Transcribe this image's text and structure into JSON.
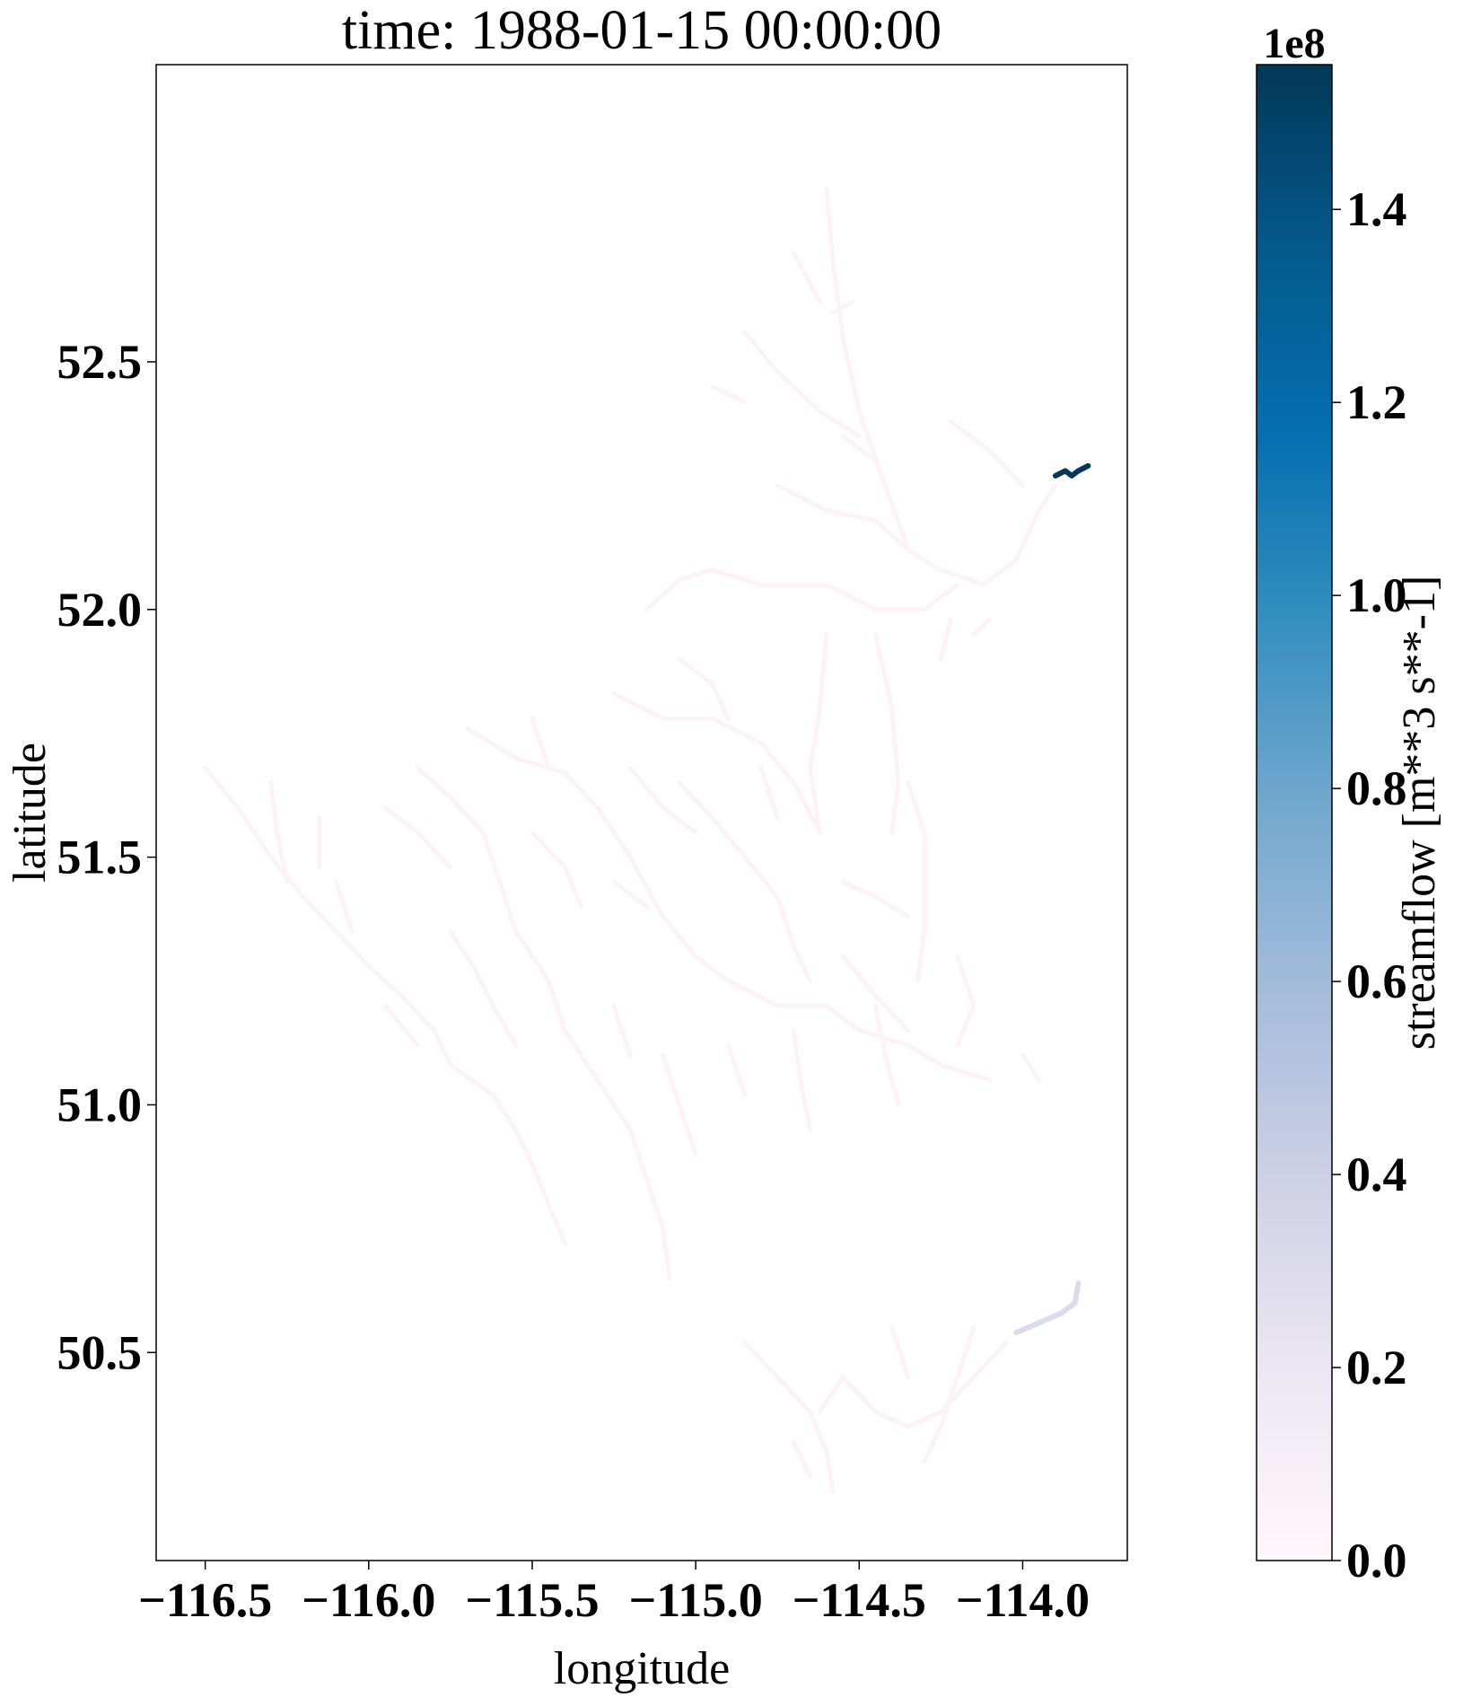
{
  "chart_data": {
    "type": "map",
    "title": "time: 1988-01-15 00:00:00",
    "xlabel": "longitude",
    "ylabel": "latitude",
    "xlim": [
      -116.65,
      -113.68
    ],
    "ylim": [
      50.08,
      53.1
    ],
    "x_ticks": [
      -116.5,
      -116.0,
      -115.5,
      -115.0,
      -114.5,
      -114.0
    ],
    "x_tick_labels": [
      "−116.5",
      "−116.0",
      "−115.5",
      "−115.0",
      "−114.5",
      "−114.0"
    ],
    "y_ticks": [
      50.5,
      51.0,
      51.5,
      52.0,
      52.5
    ],
    "y_tick_labels": [
      "50.5",
      "51.0",
      "51.5",
      "52.0",
      "52.5"
    ],
    "colorbar": {
      "label": "streamflow [m**3 s**-1]",
      "exponent_label": "1e8",
      "range": [
        0,
        1.55
      ],
      "ticks": [
        0.0,
        0.2,
        0.4,
        0.6,
        0.8,
        1.0,
        1.2,
        1.4
      ],
      "tick_labels": [
        "0.0",
        "0.2",
        "0.4",
        "0.6",
        "0.8",
        "1.0",
        "1.2",
        "1.4"
      ],
      "colormap": "PuBu",
      "colors": [
        "#fff7fb",
        "#ece7f2",
        "#d0d1e6",
        "#a6bddb",
        "#74a9cf",
        "#3690c0",
        "#0570b0",
        "#045a8d",
        "#023858"
      ]
    },
    "grid": false,
    "series": [
      {
        "values_1e8": 0.0,
        "color": "#fdf2f6",
        "paths": [
          [
            [
              -114.6,
              52.85
            ],
            [
              -114.58,
              52.7
            ],
            [
              -114.55,
              52.55
            ],
            [
              -114.5,
              52.4
            ],
            [
              -114.42,
              52.25
            ],
            [
              -114.35,
              52.12
            ],
            [
              -114.25,
              52.08
            ],
            [
              -114.12,
              52.05
            ],
            [
              -114.02,
              52.1
            ],
            [
              -113.95,
              52.2
            ],
            [
              -113.9,
              52.25
            ]
          ],
          [
            [
              -114.7,
              52.72
            ],
            [
              -114.62,
              52.62
            ]
          ],
          [
            [
              -114.52,
              52.62
            ],
            [
              -114.58,
              52.6
            ]
          ],
          [
            [
              -114.85,
              52.56
            ],
            [
              -114.75,
              52.48
            ],
            [
              -114.62,
              52.4
            ],
            [
              -114.5,
              52.35
            ]
          ],
          [
            [
              -114.95,
              52.45
            ],
            [
              -114.85,
              52.42
            ]
          ],
          [
            [
              -114.22,
              52.38
            ],
            [
              -114.1,
              52.32
            ],
            [
              -114.0,
              52.25
            ]
          ],
          [
            [
              -114.75,
              52.25
            ],
            [
              -114.6,
              52.2
            ],
            [
              -114.45,
              52.18
            ],
            [
              -114.35,
              52.12
            ]
          ],
          [
            [
              -114.55,
              52.35
            ],
            [
              -114.45,
              52.3
            ]
          ],
          [
            [
              -114.95,
              52.08
            ],
            [
              -114.8,
              52.05
            ],
            [
              -114.6,
              52.05
            ],
            [
              -114.45,
              52.0
            ],
            [
              -114.3,
              52.0
            ],
            [
              -114.2,
              52.05
            ]
          ],
          [
            [
              -115.15,
              52.0
            ],
            [
              -115.05,
              52.06
            ],
            [
              -114.95,
              52.08
            ]
          ],
          [
            [
              -114.1,
              51.98
            ],
            [
              -114.15,
              51.95
            ]
          ],
          [
            [
              -114.22,
              51.98
            ],
            [
              -114.25,
              51.9
            ]
          ],
          [
            [
              -114.6,
              51.95
            ],
            [
              -114.62,
              51.8
            ],
            [
              -114.65,
              51.68
            ],
            [
              -114.62,
              51.55
            ]
          ],
          [
            [
              -114.45,
              51.95
            ],
            [
              -114.4,
              51.8
            ],
            [
              -114.38,
              51.65
            ],
            [
              -114.4,
              51.55
            ]
          ],
          [
            [
              -115.25,
              51.83
            ],
            [
              -115.1,
              51.78
            ],
            [
              -114.95,
              51.78
            ],
            [
              -114.8,
              51.73
            ],
            [
              -114.7,
              51.65
            ],
            [
              -114.62,
              51.55
            ]
          ],
          [
            [
              -115.05,
              51.9
            ],
            [
              -114.95,
              51.85
            ],
            [
              -114.9,
              51.78
            ]
          ],
          [
            [
              -115.7,
              51.76
            ],
            [
              -115.55,
              51.7
            ],
            [
              -115.4,
              51.67
            ],
            [
              -115.3,
              51.6
            ],
            [
              -115.2,
              51.5
            ],
            [
              -115.1,
              51.38
            ],
            [
              -115.0,
              51.3
            ],
            [
              -114.9,
              51.25
            ],
            [
              -114.75,
              51.2
            ],
            [
              -114.6,
              51.2
            ],
            [
              -114.5,
              51.15
            ],
            [
              -114.35,
              51.12
            ],
            [
              -114.25,
              51.08
            ],
            [
              -114.1,
              51.05
            ]
          ],
          [
            [
              -115.5,
              51.78
            ],
            [
              -115.45,
              51.68
            ]
          ],
          [
            [
              -115.85,
              51.68
            ],
            [
              -115.75,
              51.62
            ],
            [
              -115.65,
              51.55
            ],
            [
              -115.6,
              51.45
            ],
            [
              -115.55,
              51.35
            ],
            [
              -115.45,
              51.25
            ],
            [
              -115.4,
              51.15
            ],
            [
              -115.3,
              51.05
            ],
            [
              -115.2,
              50.95
            ],
            [
              -115.15,
              50.85
            ],
            [
              -115.1,
              50.75
            ],
            [
              -115.08,
              50.65
            ]
          ],
          [
            [
              -115.95,
              51.6
            ],
            [
              -115.85,
              51.55
            ],
            [
              -115.75,
              51.48
            ]
          ],
          [
            [
              -116.5,
              51.68
            ],
            [
              -116.4,
              51.6
            ],
            [
              -116.3,
              51.5
            ],
            [
              -116.2,
              51.42
            ],
            [
              -116.1,
              51.35
            ],
            [
              -116.0,
              51.28
            ],
            [
              -115.9,
              51.22
            ],
            [
              -115.8,
              51.15
            ],
            [
              -115.75,
              51.08
            ],
            [
              -115.62,
              51.02
            ],
            [
              -115.55,
              50.95
            ],
            [
              -115.5,
              50.88
            ],
            [
              -115.45,
              50.8
            ],
            [
              -115.4,
              50.72
            ]
          ],
          [
            [
              -116.3,
              51.65
            ],
            [
              -116.28,
              51.55
            ],
            [
              -116.25,
              51.45
            ]
          ],
          [
            [
              -116.15,
              51.58
            ],
            [
              -116.15,
              51.48
            ]
          ],
          [
            [
              -116.1,
              51.45
            ],
            [
              -116.05,
              51.35
            ]
          ],
          [
            [
              -115.75,
              51.35
            ],
            [
              -115.68,
              51.28
            ],
            [
              -115.62,
              51.2
            ],
            [
              -115.55,
              51.12
            ]
          ],
          [
            [
              -115.95,
              51.2
            ],
            [
              -115.85,
              51.12
            ]
          ],
          [
            [
              -115.5,
              51.55
            ],
            [
              -115.4,
              51.48
            ],
            [
              -115.35,
              51.4
            ]
          ],
          [
            [
              -115.25,
              51.45
            ],
            [
              -115.15,
              51.4
            ]
          ],
          [
            [
              -115.2,
              51.68
            ],
            [
              -115.1,
              51.6
            ],
            [
              -115.0,
              51.55
            ]
          ],
          [
            [
              -115.05,
              51.65
            ],
            [
              -114.95,
              51.58
            ],
            [
              -114.85,
              51.5
            ],
            [
              -114.75,
              51.42
            ],
            [
              -114.7,
              51.32
            ],
            [
              -114.65,
              51.25
            ]
          ],
          [
            [
              -114.8,
              51.68
            ],
            [
              -114.75,
              51.58
            ]
          ],
          [
            [
              -114.55,
              51.45
            ],
            [
              -114.45,
              51.42
            ],
            [
              -114.35,
              51.38
            ]
          ],
          [
            [
              -114.35,
              51.65
            ],
            [
              -114.3,
              51.55
            ],
            [
              -114.3,
              51.45
            ],
            [
              -114.3,
              51.35
            ],
            [
              -114.32,
              51.25
            ]
          ],
          [
            [
              -114.55,
              51.3
            ],
            [
              -114.45,
              51.22
            ],
            [
              -114.35,
              51.15
            ]
          ],
          [
            [
              -114.45,
              51.2
            ],
            [
              -114.42,
              51.1
            ],
            [
              -114.38,
              51.0
            ]
          ],
          [
            [
              -114.7,
              51.15
            ],
            [
              -114.68,
              51.05
            ],
            [
              -114.65,
              50.95
            ]
          ],
          [
            [
              -114.9,
              51.12
            ],
            [
              -114.85,
              51.02
            ]
          ],
          [
            [
              -115.1,
              51.1
            ],
            [
              -115.05,
              51.0
            ],
            [
              -115.0,
              50.9
            ]
          ],
          [
            [
              -115.25,
              51.2
            ],
            [
              -115.2,
              51.1
            ]
          ],
          [
            [
              -114.2,
              51.3
            ],
            [
              -114.15,
              51.2
            ],
            [
              -114.2,
              51.12
            ]
          ],
          [
            [
              -114.0,
              51.1
            ],
            [
              -113.95,
              51.05
            ]
          ],
          [
            [
              -114.85,
              50.52
            ],
            [
              -114.75,
              50.45
            ],
            [
              -114.65,
              50.38
            ],
            [
              -114.6,
              50.3
            ],
            [
              -114.58,
              50.22
            ]
          ],
          [
            [
              -114.7,
              50.32
            ],
            [
              -114.65,
              50.25
            ]
          ],
          [
            [
              -114.55,
              50.45
            ],
            [
              -114.45,
              50.38
            ],
            [
              -114.35,
              50.35
            ],
            [
              -114.25,
              50.38
            ],
            [
              -114.15,
              50.45
            ],
            [
              -114.05,
              50.52
            ]
          ],
          [
            [
              -114.4,
              50.55
            ],
            [
              -114.35,
              50.45
            ]
          ],
          [
            [
              -114.15,
              50.55
            ],
            [
              -114.2,
              50.45
            ],
            [
              -114.25,
              50.35
            ],
            [
              -114.3,
              50.28
            ]
          ],
          [
            [
              -114.55,
              50.45
            ],
            [
              -114.62,
              50.38
            ]
          ]
        ]
      },
      {
        "values_1e8": 0.28,
        "color": "#dadbeb",
        "paths": [
          [
            [
              -114.02,
              50.54
            ],
            [
              -113.95,
              50.56
            ],
            [
              -113.88,
              50.58
            ],
            [
              -113.84,
              50.6
            ],
            [
              -113.83,
              50.64
            ]
          ]
        ]
      },
      {
        "values_1e8": 1.55,
        "color": "#023858",
        "paths": [
          [
            [
              -113.9,
              52.27
            ],
            [
              -113.87,
              52.28
            ],
            [
              -113.85,
              52.27
            ],
            [
              -113.83,
              52.28
            ],
            [
              -113.8,
              52.29
            ]
          ]
        ]
      }
    ]
  }
}
